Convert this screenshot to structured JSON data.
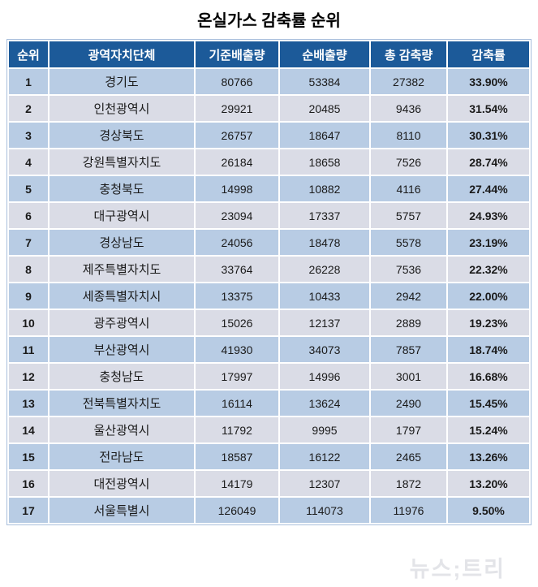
{
  "title": "온실가스 감축률 순위",
  "watermark": "뉴스;트리",
  "colors": {
    "header_bg": "#1c5a99",
    "header_text": "#ffffff",
    "row_odd_bg": "#b8cce4",
    "row_even_bg": "#dadce6",
    "cell_text": "#1a1a1a",
    "grid": "#ffffff",
    "outer_border": "#a9bfdc",
    "watermark": "#e3e4e8"
  },
  "chart_data": {
    "type": "table",
    "title": "온실가스 감축률 순위",
    "columns": [
      "순위",
      "광역자치단체",
      "기준배출량",
      "순배출량",
      "총 감축량",
      "감축률"
    ],
    "column_roles": [
      "rank",
      "region",
      "base_emission",
      "net_emission",
      "total_reduction",
      "reduction_rate"
    ],
    "rows": [
      [
        "1",
        "경기도",
        "80766",
        "53384",
        "27382",
        "33.90%"
      ],
      [
        "2",
        "인천광역시",
        "29921",
        "20485",
        "9436",
        "31.54%"
      ],
      [
        "3",
        "경상북도",
        "26757",
        "18647",
        "8110",
        "30.31%"
      ],
      [
        "4",
        "강원특별자치도",
        "26184",
        "18658",
        "7526",
        "28.74%"
      ],
      [
        "5",
        "충청북도",
        "14998",
        "10882",
        "4116",
        "27.44%"
      ],
      [
        "6",
        "대구광역시",
        "23094",
        "17337",
        "5757",
        "24.93%"
      ],
      [
        "7",
        "경상남도",
        "24056",
        "18478",
        "5578",
        "23.19%"
      ],
      [
        "8",
        "제주특별자치도",
        "33764",
        "26228",
        "7536",
        "22.32%"
      ],
      [
        "9",
        "세종특별자치시",
        "13375",
        "10433",
        "2942",
        "22.00%"
      ],
      [
        "10",
        "광주광역시",
        "15026",
        "12137",
        "2889",
        "19.23%"
      ],
      [
        "11",
        "부산광역시",
        "41930",
        "34073",
        "7857",
        "18.74%"
      ],
      [
        "12",
        "충청남도",
        "17997",
        "14996",
        "3001",
        "16.68%"
      ],
      [
        "13",
        "전북특별자치도",
        "16114",
        "13624",
        "2490",
        "15.45%"
      ],
      [
        "14",
        "울산광역시",
        "11792",
        "9995",
        "1797",
        "15.24%"
      ],
      [
        "15",
        "전라남도",
        "18587",
        "16122",
        "2465",
        "13.26%"
      ],
      [
        "16",
        "대전광역시",
        "14179",
        "12307",
        "1872",
        "13.20%"
      ],
      [
        "17",
        "서울특별시",
        "126049",
        "114073",
        "11976",
        "9.50%"
      ]
    ]
  }
}
